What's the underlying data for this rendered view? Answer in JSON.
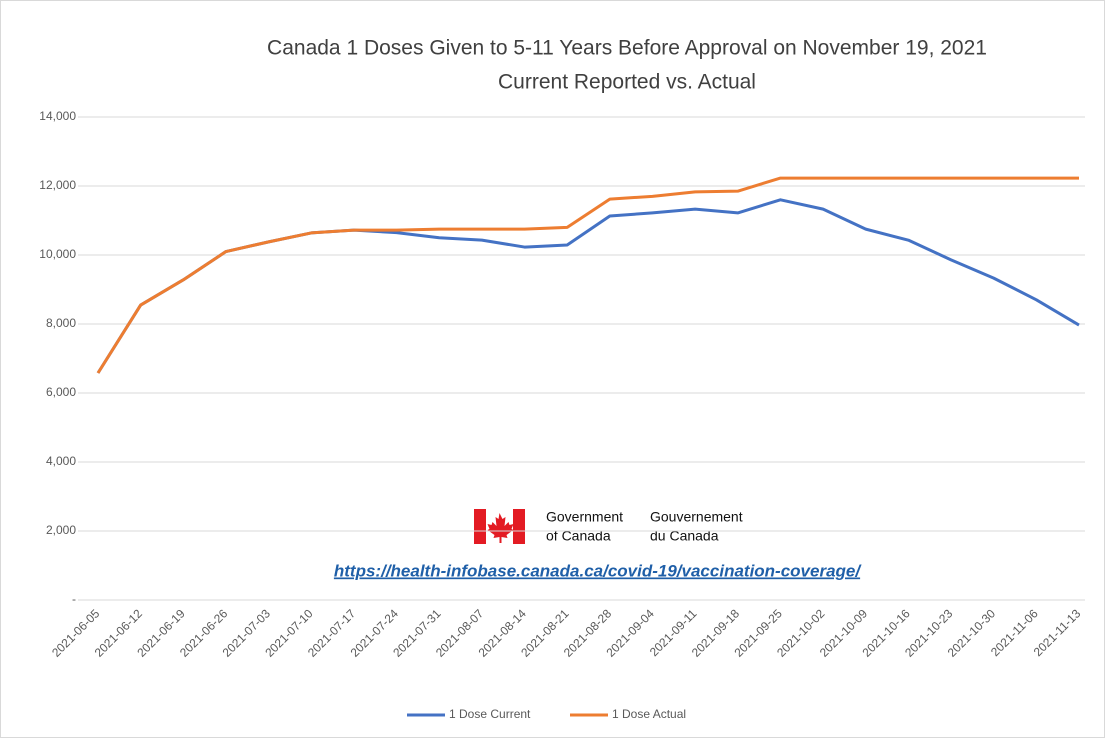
{
  "chart_data": {
    "type": "line",
    "title": "Canada 1 Doses Given to 5-11 Years Before Approval on November 19, 2021",
    "subtitle": "Current Reported vs. Actual",
    "annotations": [
      "Government",
      "of Canada",
      "Gouvernement",
      "du Canada",
      "https://health-infobase.canada.ca/covid-19/vaccination-coverage/"
    ],
    "categories": [
      "2021-06-05",
      "2021-06-12",
      "2021-06-19",
      "2021-06-26",
      "2021-07-03",
      "2021-07-10",
      "2021-07-17",
      "2021-07-24",
      "2021-07-31",
      "2021-08-07",
      "2021-08-14",
      "2021-08-21",
      "2021-08-28",
      "2021-09-04",
      "2021-09-11",
      "2021-09-18",
      "2021-09-25",
      "2021-10-02",
      "2021-10-09",
      "2021-10-16",
      "2021-10-23",
      "2021-10-30",
      "2021-11-06",
      "2021-11-13"
    ],
    "series": [
      {
        "name": "1 Dose Current",
        "color": "#4472c4",
        "values": [
          6580,
          8550,
          9280,
          10100,
          10380,
          10640,
          10720,
          10650,
          10500,
          10430,
          10230,
          10290,
          11130,
          11220,
          11330,
          11220,
          11600,
          11330,
          10750,
          10430,
          9860,
          9330,
          8700,
          7970
        ]
      },
      {
        "name": "1 Dose Actual",
        "color": "#ed7d31",
        "values": [
          6580,
          8550,
          9280,
          10100,
          10380,
          10640,
          10720,
          10720,
          10750,
          10750,
          10750,
          10800,
          11620,
          11700,
          11830,
          11850,
          12230,
          12230,
          12230,
          12230,
          12230,
          12230,
          12230,
          12230
        ]
      }
    ],
    "ylim": [
      0,
      14000
    ],
    "yticks": [
      {
        "value": 0,
        "label": "-"
      },
      {
        "value": 2000,
        "label": "2,000"
      },
      {
        "value": 4000,
        "label": "4,000"
      },
      {
        "value": 6000,
        "label": "6,000"
      },
      {
        "value": 8000,
        "label": "8,000"
      },
      {
        "value": 10000,
        "label": "10,000"
      },
      {
        "value": 12000,
        "label": "12,000"
      },
      {
        "value": 14000,
        "label": "14,000"
      }
    ],
    "grid": true,
    "legend": "bottom"
  }
}
